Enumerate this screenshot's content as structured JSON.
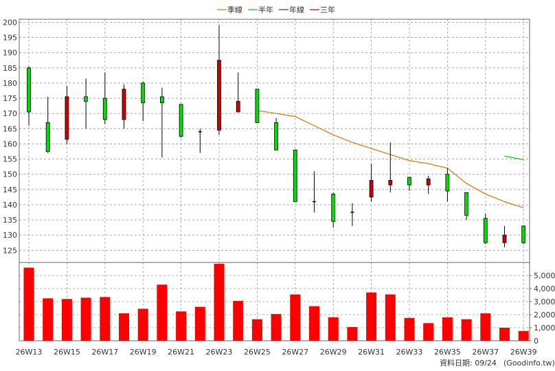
{
  "chart_data": {
    "type": "candlestick",
    "legend": [
      "季線",
      "半年",
      "年線",
      "三年"
    ],
    "colors": {
      "up": "#00dd00",
      "down": "#cc0000",
      "doji": "#000000",
      "quarter_ma": "#e07000",
      "half_year_ma": "#00cc00",
      "year_ma": "#0044cc",
      "three_year_ma": "#cc0000",
      "volume": "#ff0000"
    },
    "price_axis": {
      "ylim": [
        121,
        201
      ],
      "ticks": [
        125,
        130,
        135,
        140,
        145,
        150,
        155,
        160,
        165,
        170,
        175,
        180,
        185,
        190,
        195,
        200
      ]
    },
    "volume_axis": {
      "ylim": [
        0,
        6000
      ],
      "ticks": [
        0,
        1000,
        2000,
        3000,
        4000,
        5000
      ],
      "tick_labels": [
        "0",
        "1,000",
        "2,000",
        "3,000",
        "4,000",
        "5,000"
      ]
    },
    "x_tick_labels": [
      "26W13",
      "26W15",
      "26W17",
      "26W19",
      "26W21",
      "26W23",
      "26W25",
      "26W27",
      "26W29",
      "26W31",
      "26W33",
      "26W35",
      "26W37",
      "26W39"
    ],
    "weeks": [
      "26W13",
      "26W14",
      "26W15",
      "26W16",
      "26W17",
      "26W18",
      "26W19",
      "26W20",
      "26W21",
      "26W22",
      "26W23",
      "26W24",
      "26W25",
      "26W26",
      "26W27",
      "26W28",
      "26W29",
      "26W30",
      "26W31",
      "26W32",
      "26W33",
      "26W34",
      "26W35",
      "26W36",
      "26W37",
      "26W38",
      "26W39"
    ],
    "candles": [
      {
        "o": 170.5,
        "h": 185.5,
        "l": 166,
        "c": 185
      },
      {
        "o": 157.5,
        "h": 175.5,
        "l": 157,
        "c": 167
      },
      {
        "o": 175.5,
        "h": 179,
        "l": 160,
        "c": 161.5
      },
      {
        "o": 174,
        "h": 181.5,
        "l": 165,
        "c": 175.5
      },
      {
        "o": 168,
        "h": 183.5,
        "l": 166.5,
        "c": 175
      },
      {
        "o": 178,
        "h": 179.5,
        "l": 165,
        "c": 168
      },
      {
        "o": 173.5,
        "h": 180.5,
        "l": 167.5,
        "c": 180
      },
      {
        "o": 173.5,
        "h": 178.5,
        "l": 155.5,
        "c": 175.5
      },
      {
        "o": 162.5,
        "h": 173,
        "l": 162,
        "c": 173
      },
      {
        "o": 164,
        "h": 165,
        "l": 157,
        "c": 164
      },
      {
        "o": 187.5,
        "h": 199,
        "l": 163,
        "c": 164.5
      },
      {
        "o": 174,
        "h": 183.5,
        "l": 170.5,
        "c": 170.5
      },
      {
        "o": 167,
        "h": 178,
        "l": 167,
        "c": 178
      },
      {
        "o": 158,
        "h": 168.5,
        "l": 158,
        "c": 167
      },
      {
        "o": 141,
        "h": 158,
        "l": 141,
        "c": 158
      },
      {
        "o": 141.5,
        "h": 151,
        "l": 137.5,
        "c": 141
      },
      {
        "o": 134.5,
        "h": 144,
        "l": 132.5,
        "c": 143.5
      },
      {
        "o": 137.5,
        "h": 140.5,
        "l": 133,
        "c": 137.5
      },
      {
        "o": 148,
        "h": 153.5,
        "l": 141,
        "c": 142.5
      },
      {
        "o": 148,
        "h": 160.5,
        "l": 144,
        "c": 146.5
      },
      {
        "o": 146.5,
        "h": 149,
        "l": 144.5,
        "c": 149
      },
      {
        "o": 148.5,
        "h": 149.5,
        "l": 143.5,
        "c": 146.5
      },
      {
        "o": 144.5,
        "h": 152,
        "l": 141,
        "c": 150
      },
      {
        "o": 136.5,
        "h": 144,
        "l": 135,
        "c": 144
      },
      {
        "o": 127.5,
        "h": 137,
        "l": 127,
        "c": 135.5
      },
      {
        "o": 130,
        "h": 133,
        "l": 126,
        "c": 127.5
      },
      {
        "o": 127.5,
        "h": 133,
        "l": 127,
        "c": 133
      }
    ],
    "quarter_ma": [
      null,
      null,
      null,
      null,
      null,
      null,
      null,
      null,
      null,
      null,
      null,
      null,
      171,
      170,
      169,
      166,
      163,
      160.5,
      158.5,
      156.5,
      154.5,
      153.5,
      152,
      147,
      143.5,
      141,
      139
    ],
    "half_year_ma": [
      null,
      null,
      null,
      null,
      null,
      null,
      null,
      null,
      null,
      null,
      null,
      null,
      null,
      null,
      null,
      null,
      null,
      null,
      null,
      null,
      null,
      null,
      null,
      null,
      null,
      156,
      154.8
    ],
    "volume": [
      5600,
      3250,
      3200,
      3300,
      3350,
      2100,
      2450,
      4300,
      2250,
      2600,
      5900,
      3050,
      1650,
      2050,
      3550,
      2650,
      1800,
      1050,
      3700,
      3550,
      1750,
      1350,
      1800,
      1650,
      2100,
      1000,
      750
    ],
    "footer": {
      "date_label": "資料日期: 09/24",
      "source": "(Goodinfo.tw)"
    }
  }
}
